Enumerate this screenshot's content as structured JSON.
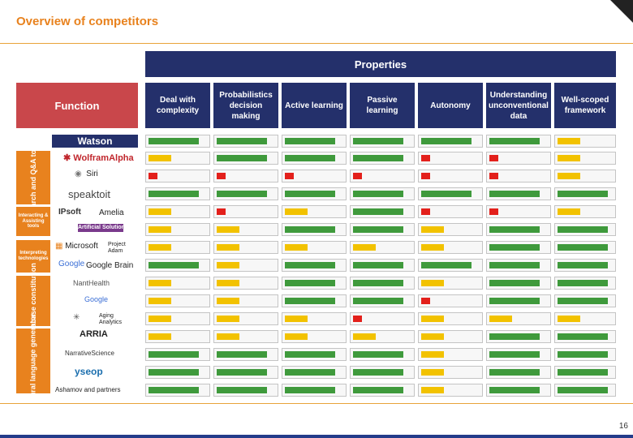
{
  "page": {
    "title": "Overview of competitors",
    "page_number": "16"
  },
  "header": {
    "properties_label": "Properties",
    "function_label": "Function",
    "watson_label": "Watson",
    "properties": [
      "Deal with complexity",
      "Probabilistics decision making",
      "Active learning",
      "Passive learning",
      "Autonomy",
      "Understanding unconventional data",
      "Well-scoped framework"
    ]
  },
  "categories": [
    "Search and Q&A tools",
    "Interacting & Assisting tools",
    "Interpreting technologies",
    "Database constitution",
    "Natural language generator"
  ],
  "competitors": [
    "WolframAlpha",
    "Siri",
    "speaktoit",
    "IPsoft",
    "Amelia",
    "Artificial Solutions",
    "Microsoft",
    "Project Adam",
    "Google",
    "Google Brain",
    "NantHealth",
    "Google",
    "Aging Analytics",
    "ARRIA",
    "NarrativeScience",
    "yseop",
    "Ashamov and partners"
  ],
  "rating_colors": {
    "high": "#3f9a3c",
    "medium": "#f2c200",
    "low": "#e3201b"
  },
  "ratings": [
    [
      "high",
      "high",
      "high",
      "high",
      "high",
      "high",
      "medium"
    ],
    [
      "medium",
      "high",
      "high",
      "high",
      "low",
      "low",
      "medium"
    ],
    [
      "low",
      "low",
      "low",
      "low",
      "low",
      "low",
      "medium"
    ],
    [
      "high",
      "high",
      "high",
      "high",
      "high",
      "high",
      "high"
    ],
    [
      "medium",
      "low",
      "medium",
      "high",
      "low",
      "low",
      "medium"
    ],
    [
      "medium",
      "medium",
      "high",
      "high",
      "medium",
      "high",
      "high"
    ],
    [
      "medium",
      "medium",
      "medium",
      "medium",
      "medium",
      "high",
      "high"
    ],
    [
      "high",
      "medium",
      "high",
      "high",
      "high",
      "high",
      "high"
    ],
    [
      "medium",
      "medium",
      "high",
      "high",
      "medium",
      "high",
      "high"
    ],
    [
      "medium",
      "medium",
      "high",
      "high",
      "low",
      "high",
      "high"
    ],
    [
      "medium",
      "medium",
      "medium",
      "low",
      "medium",
      "medium",
      "medium"
    ],
    [
      "medium",
      "medium",
      "medium",
      "medium",
      "medium",
      "high",
      "high"
    ],
    [
      "high",
      "high",
      "high",
      "high",
      "medium",
      "high",
      "high"
    ],
    [
      "high",
      "high",
      "high",
      "high",
      "medium",
      "high",
      "high"
    ],
    [
      "high",
      "high",
      "high",
      "high",
      "medium",
      "high",
      "high"
    ]
  ]
}
